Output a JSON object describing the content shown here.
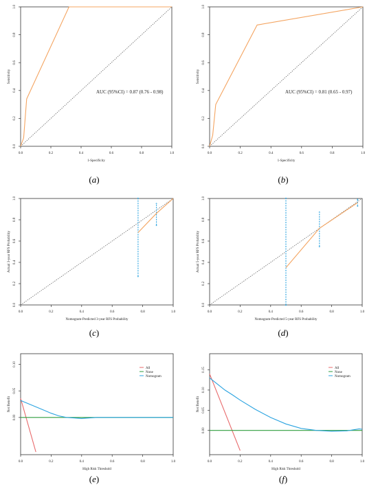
{
  "colors": {
    "orange": "#f4a460",
    "blue": "#2aa3e0",
    "green": "#2e9e3e",
    "red": "#e8696b",
    "axis": "#333333",
    "diag": "#555555"
  },
  "panels": [
    {
      "id": "a",
      "caption_letter": "a",
      "kind": "roc",
      "xlabel": "1-Specificity",
      "ylabel": "Sensitivity",
      "xticks": [
        "0.0",
        "0.2",
        "0.4",
        "0.6",
        "0.8",
        "1.0"
      ],
      "yticks": [
        "0.0",
        "0.2",
        "0.4",
        "0.6",
        "0.8",
        "1.0"
      ],
      "annotation": "AUC (95%CI) = 0.87 (0.76 - 0.98)"
    },
    {
      "id": "b",
      "caption_letter": "b",
      "kind": "roc",
      "xlabel": "1-Specificity",
      "ylabel": "Sensitivity",
      "xticks": [
        "0.0",
        "0.2",
        "0.4",
        "0.6",
        "0.8",
        "1.0"
      ],
      "yticks": [
        "0.0",
        "0.2",
        "0.4",
        "0.6",
        "0.8",
        "1.0"
      ],
      "annotation": "AUC (95%CI) = 0.81 (0.65 - 0.97)"
    },
    {
      "id": "c",
      "caption_letter": "c",
      "kind": "calibration",
      "xlabel": "Nomogram-Predicted 3-year RFS Probability",
      "ylabel": "Actual 3-year RFS Probability",
      "xticks": [
        "0.0",
        "0.2",
        "0.4",
        "0.6",
        "0.8",
        "1.0"
      ],
      "yticks": [
        "0.0",
        "0.2",
        "0.4",
        "0.6",
        "0.8",
        "1.0"
      ]
    },
    {
      "id": "d",
      "caption_letter": "d",
      "kind": "calibration",
      "xlabel": "Nomogram-Predicted 5-year RFS Probability",
      "ylabel": "Actual 5-year RFS Probability",
      "xticks": [
        "0.0",
        "0.2",
        "0.4",
        "0.6",
        "0.8",
        "1.0"
      ],
      "yticks": [
        "0.0",
        "0.2",
        "0.4",
        "0.6",
        "0.8",
        "1.0"
      ]
    },
    {
      "id": "e",
      "caption_letter": "e",
      "kind": "dca",
      "xlabel": "High Risk Threshold",
      "ylabel": "Net Benefit",
      "xticks": [
        "0.0",
        "0.2",
        "0.4",
        "0.6",
        "0.8",
        "1.0"
      ],
      "yticks": [
        "0.00",
        "0.05",
        "0.10"
      ],
      "legend": [
        "All",
        "None",
        "Nomogram"
      ]
    },
    {
      "id": "f",
      "caption_letter": "f",
      "kind": "dca",
      "xlabel": "High Risk Threshold",
      "ylabel": "Net Benefit",
      "xticks": [
        "0.0",
        "0.2",
        "0.4",
        "0.6",
        "0.8",
        "1.0"
      ],
      "yticks": [
        "0.00",
        "0.05",
        "0.10",
        "0.15"
      ],
      "legend": [
        "All",
        "None",
        "Nomogram"
      ]
    }
  ],
  "chart_data": [
    {
      "panel": "a",
      "type": "line",
      "xlim": [
        0,
        1
      ],
      "ylim": [
        0,
        1
      ],
      "series": [
        {
          "x": [
            0.0,
            0.02,
            0.04,
            0.32,
            1.0
          ],
          "y": [
            0.0,
            0.06,
            0.34,
            1.0,
            1.0
          ]
        }
      ],
      "reference_line": {
        "x": [
          0,
          1
        ],
        "y": [
          0,
          1
        ]
      },
      "annotation": "AUC (95%CI) = 0.87 (0.76 - 0.98)"
    },
    {
      "panel": "b",
      "type": "line",
      "xlim": [
        0,
        1
      ],
      "ylim": [
        0,
        1
      ],
      "series": [
        {
          "x": [
            0.0,
            0.02,
            0.04,
            0.31,
            1.0
          ],
          "y": [
            0.0,
            0.08,
            0.3,
            0.87,
            1.0
          ]
        }
      ],
      "reference_line": {
        "x": [
          0,
          1
        ],
        "y": [
          0,
          1
        ]
      },
      "annotation": "AUC (95%CI) = 0.81 (0.65 - 0.97)"
    },
    {
      "panel": "c",
      "type": "line",
      "xlim": [
        0,
        1
      ],
      "ylim": [
        0,
        1
      ],
      "series": [
        {
          "x": [
            0.77,
            0.89,
            1.0
          ],
          "y": [
            0.68,
            0.86,
            1.0
          ]
        }
      ],
      "error_bars": [
        {
          "x": 0.77,
          "low": 0.27,
          "high": 1.0
        },
        {
          "x": 0.89,
          "low": 0.75,
          "high": 0.95
        }
      ],
      "reference_line": {
        "x": [
          0,
          1
        ],
        "y": [
          0,
          1
        ]
      }
    },
    {
      "panel": "d",
      "type": "line",
      "xlim": [
        0,
        1
      ],
      "ylim": [
        0,
        1
      ],
      "series": [
        {
          "x": [
            0.5,
            0.72,
            0.97
          ],
          "y": [
            0.35,
            0.72,
            0.96
          ]
        }
      ],
      "error_bars": [
        {
          "x": 0.5,
          "low": 0.0,
          "high": 1.0
        },
        {
          "x": 0.72,
          "low": 0.55,
          "high": 0.87
        },
        {
          "x": 0.97,
          "low": 0.93,
          "high": 0.99
        }
      ],
      "reference_line": {
        "x": [
          0,
          1
        ],
        "y": [
          0,
          1
        ]
      }
    },
    {
      "panel": "e",
      "type": "line",
      "xlim": [
        0,
        1
      ],
      "ylim": [
        -0.07,
        0.12
      ],
      "series": [
        {
          "name": "All",
          "x": [
            0.0,
            0.1
          ],
          "y": [
            0.036,
            -0.065
          ]
        },
        {
          "name": "None",
          "x": [
            0.0,
            1.0
          ],
          "y": [
            0.0,
            0.0
          ]
        },
        {
          "name": "Nomogram",
          "x": [
            0.0,
            0.05,
            0.1,
            0.15,
            0.2,
            0.25,
            0.3,
            0.35,
            0.4,
            0.45,
            0.5,
            0.6,
            0.7,
            0.8,
            0.9,
            1.0
          ],
          "y": [
            0.032,
            0.026,
            0.02,
            0.014,
            0.008,
            0.003,
            0.0,
            -0.001,
            -0.002,
            -0.001,
            0.0,
            0.0,
            0.0,
            0.0,
            0.0,
            0.0
          ]
        }
      ]
    },
    {
      "panel": "f",
      "type": "line",
      "xlim": [
        0,
        1
      ],
      "ylim": [
        -0.06,
        0.19
      ],
      "series": [
        {
          "name": "All",
          "x": [
            0.0,
            0.2
          ],
          "y": [
            0.14,
            -0.05
          ]
        },
        {
          "name": "None",
          "x": [
            0.0,
            1.0
          ],
          "y": [
            0.0,
            0.0
          ]
        },
        {
          "name": "Nomogram",
          "x": [
            0.0,
            0.05,
            0.1,
            0.15,
            0.2,
            0.3,
            0.4,
            0.5,
            0.6,
            0.7,
            0.8,
            0.9,
            0.98,
            1.0
          ],
          "y": [
            0.13,
            0.115,
            0.1,
            0.088,
            0.075,
            0.052,
            0.032,
            0.016,
            0.005,
            0.0,
            -0.002,
            -0.001,
            0.004,
            0.003
          ]
        }
      ]
    }
  ]
}
